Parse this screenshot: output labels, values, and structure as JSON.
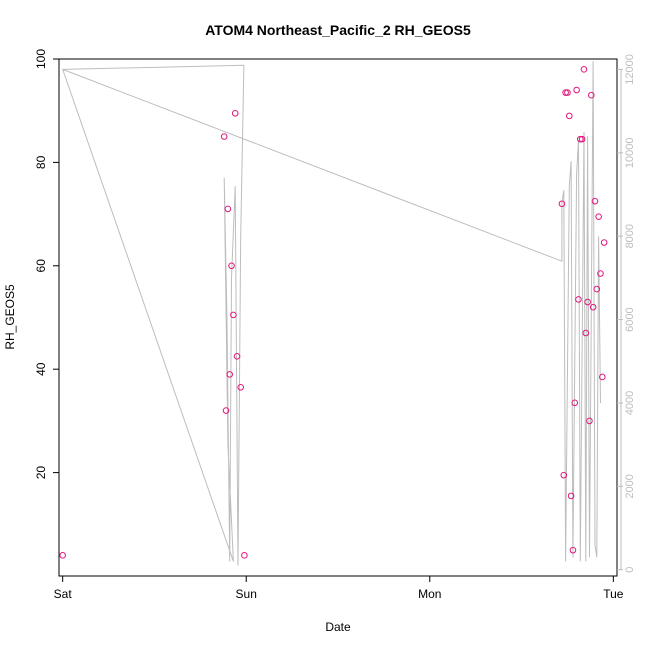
{
  "chart_data": {
    "type": "scatter",
    "title": "ATOM4 Northeast_Pacific_2 RH_GEOS5",
    "xlabel": "Date",
    "ylabel": "RH_GEOS5",
    "x_ticks": [
      "Sat",
      "Sun",
      "Mon",
      "Tue"
    ],
    "xlim": [
      -0.02,
      3.02
    ],
    "ylim": [
      0,
      100
    ],
    "y_ticks": [
      20,
      40,
      60,
      80,
      100
    ],
    "y2lim": [
      -150,
      12250
    ],
    "y2_ticks": [
      0,
      2000,
      4000,
      6000,
      8000,
      10000,
      12000
    ],
    "grid": false,
    "colors": {
      "points": "#e0187c",
      "altitude_line": "#bdbdbd",
      "right_axis": "#bdbdbd"
    },
    "series": [
      {
        "type": "scatter",
        "points": [
          {
            "x": 0.0,
            "y": 4.0
          },
          {
            "x": 0.88,
            "y": 85.0
          },
          {
            "x": 0.89,
            "y": 32.0
          },
          {
            "x": 0.9,
            "y": 71.0
          },
          {
            "x": 0.91,
            "y": 39.0
          },
          {
            "x": 0.92,
            "y": 60.0
          },
          {
            "x": 0.93,
            "y": 50.5
          },
          {
            "x": 0.94,
            "y": 89.5
          },
          {
            "x": 0.95,
            "y": 42.5
          },
          {
            "x": 0.97,
            "y": 36.5
          },
          {
            "x": 0.99,
            "y": 4.0
          },
          {
            "x": 2.72,
            "y": 72.0
          },
          {
            "x": 2.73,
            "y": 19.5
          },
          {
            "x": 2.74,
            "y": 93.5
          },
          {
            "x": 2.75,
            "y": 93.5
          },
          {
            "x": 2.76,
            "y": 89.0
          },
          {
            "x": 2.77,
            "y": 15.5
          },
          {
            "x": 2.78,
            "y": 5.0
          },
          {
            "x": 2.79,
            "y": 33.5
          },
          {
            "x": 2.8,
            "y": 94.0
          },
          {
            "x": 2.81,
            "y": 53.5
          },
          {
            "x": 2.82,
            "y": 84.5
          },
          {
            "x": 2.83,
            "y": 84.5
          },
          {
            "x": 2.84,
            "y": 98.0
          },
          {
            "x": 2.85,
            "y": 47.0
          },
          {
            "x": 2.86,
            "y": 53.0
          },
          {
            "x": 2.87,
            "y": 30.0
          },
          {
            "x": 2.88,
            "y": 93.0
          },
          {
            "x": 2.89,
            "y": 52.0
          },
          {
            "x": 2.9,
            "y": 72.5
          },
          {
            "x": 2.91,
            "y": 55.5
          },
          {
            "x": 2.92,
            "y": 69.5
          },
          {
            "x": 2.93,
            "y": 58.5
          },
          {
            "x": 2.94,
            "y": 38.5
          },
          {
            "x": 2.95,
            "y": 64.5
          }
        ]
      },
      {
        "type": "line",
        "axis": "right",
        "points": [
          {
            "x": 0.0,
            "y": 12000
          },
          {
            "x": 0.987,
            "y": 12100
          },
          {
            "x": 0.987,
            "y": 12000
          },
          {
            "x": 0.97,
            "y": 8000
          },
          {
            "x": 0.955,
            "y": 100
          },
          {
            "x": 0.94,
            "y": 9200
          },
          {
            "x": 0.92,
            "y": 7000
          },
          {
            "x": 0.91,
            "y": 200
          },
          {
            "x": 0.895,
            "y": 6000
          },
          {
            "x": 0.88,
            "y": 9400
          },
          {
            "x": 0.88,
            "y": 9400
          },
          {
            "x": 0.9,
            "y": 3000
          },
          {
            "x": 0.93,
            "y": 200
          },
          {
            "x": 0.0,
            "y": 12000
          },
          {
            "x": 2.72,
            "y": 7400
          },
          {
            "x": 2.72,
            "y": 8800
          },
          {
            "x": 2.73,
            "y": 9100
          },
          {
            "x": 2.74,
            "y": 200
          },
          {
            "x": 2.76,
            "y": 9200
          },
          {
            "x": 2.77,
            "y": 9800
          },
          {
            "x": 2.78,
            "y": 300
          },
          {
            "x": 2.8,
            "y": 9500
          },
          {
            "x": 2.81,
            "y": 10300
          },
          {
            "x": 2.82,
            "y": 200
          },
          {
            "x": 2.84,
            "y": 10500
          },
          {
            "x": 2.85,
            "y": 200
          },
          {
            "x": 2.86,
            "y": 10400
          },
          {
            "x": 2.87,
            "y": 300
          },
          {
            "x": 2.89,
            "y": 12200
          },
          {
            "x": 2.9,
            "y": 600
          },
          {
            "x": 2.91,
            "y": 300
          },
          {
            "x": 2.92,
            "y": 8000
          },
          {
            "x": 2.93,
            "y": 4000
          }
        ]
      }
    ]
  }
}
